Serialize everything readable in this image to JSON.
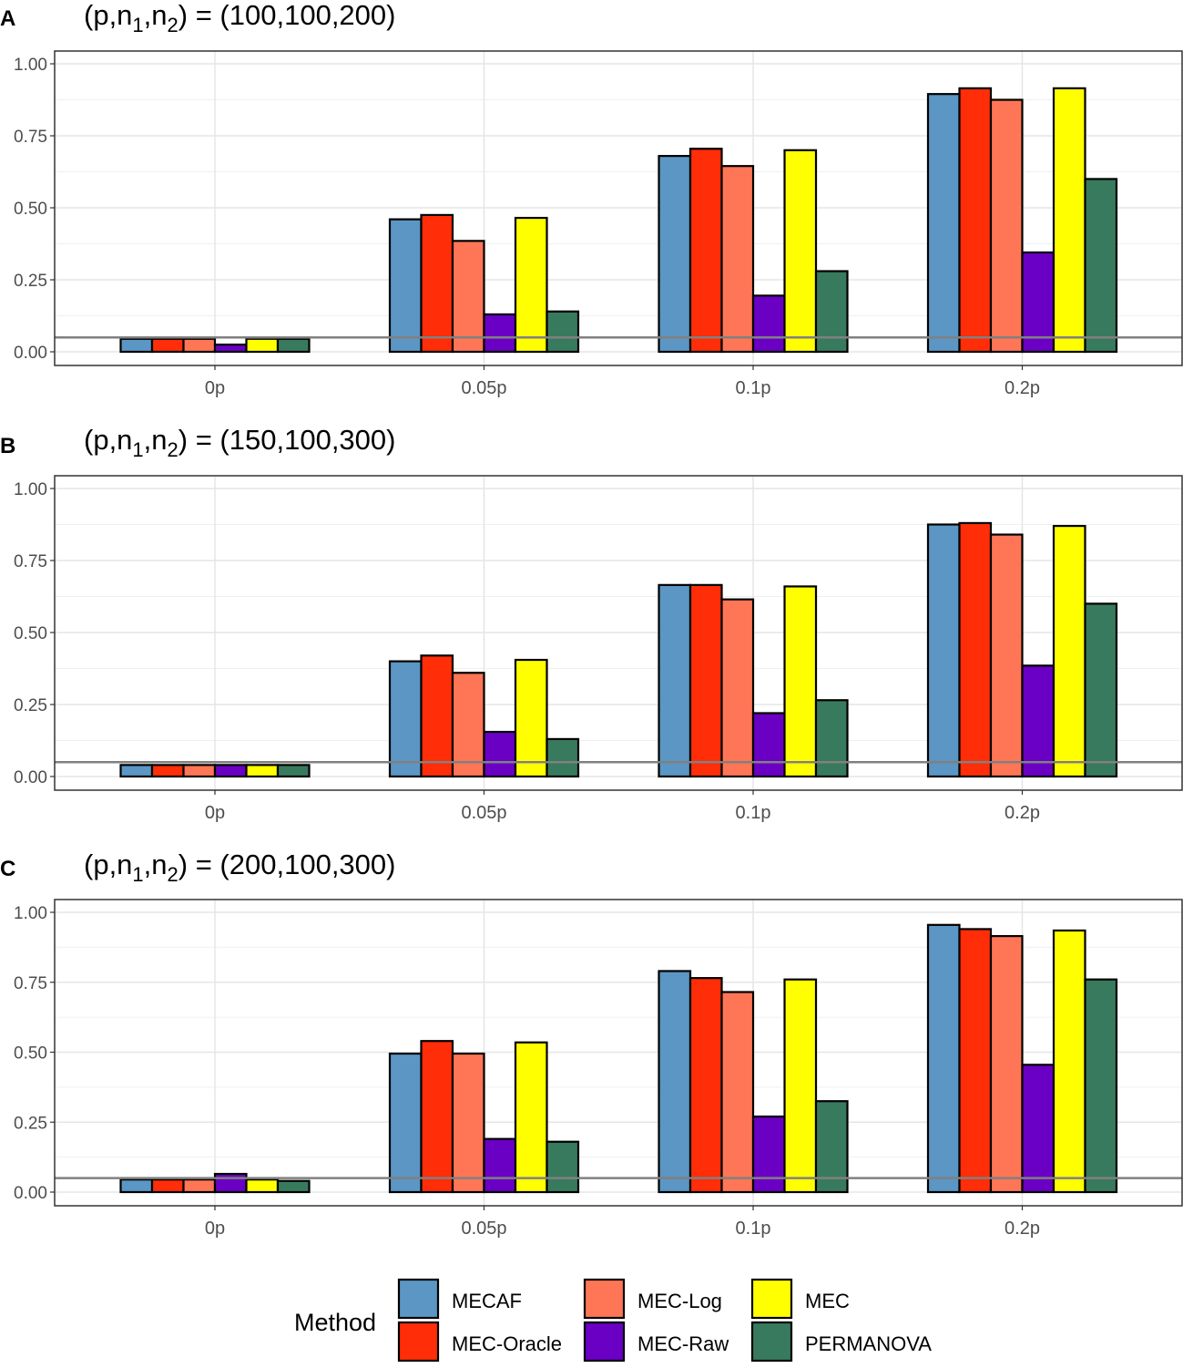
{
  "chart_data": [
    {
      "type": "bar",
      "panel": "A",
      "title": {
        "prefix": "(p,n",
        "s1": "1",
        "mid": ",n",
        "s2": "2",
        "suffix": ") = (100,100,200)"
      },
      "categories": [
        "0p",
        "0.05p",
        "0.1p",
        "0.2p"
      ],
      "ylim": [
        0,
        1.05
      ],
      "yticks": [
        "0.00",
        "0.25",
        "0.50",
        "0.75",
        "1.00"
      ],
      "reference_line": 0.05,
      "series": [
        {
          "name": "MECAF",
          "values": [
            0.045,
            0.46,
            0.68,
            0.895
          ]
        },
        {
          "name": "MEC-Oracle",
          "values": [
            0.045,
            0.475,
            0.705,
            0.915
          ]
        },
        {
          "name": "MEC-Log",
          "values": [
            0.045,
            0.385,
            0.645,
            0.875
          ]
        },
        {
          "name": "MEC-Raw",
          "values": [
            0.025,
            0.13,
            0.195,
            0.345
          ]
        },
        {
          "name": "MEC",
          "values": [
            0.045,
            0.465,
            0.7,
            0.915
          ]
        },
        {
          "name": "PERMANOVA",
          "values": [
            0.045,
            0.14,
            0.28,
            0.6
          ]
        }
      ]
    },
    {
      "type": "bar",
      "panel": "B",
      "title": {
        "prefix": "(p,n",
        "s1": "1",
        "mid": ",n",
        "s2": "2",
        "suffix": ") = (150,100,300)"
      },
      "categories": [
        "0p",
        "0.05p",
        "0.1p",
        "0.2p"
      ],
      "ylim": [
        0,
        1.05
      ],
      "yticks": [
        "0.00",
        "0.25",
        "0.50",
        "0.75",
        "1.00"
      ],
      "reference_line": 0.05,
      "series": [
        {
          "name": "MECAF",
          "values": [
            0.04,
            0.4,
            0.665,
            0.875
          ]
        },
        {
          "name": "MEC-Oracle",
          "values": [
            0.04,
            0.42,
            0.665,
            0.88
          ]
        },
        {
          "name": "MEC-Log",
          "values": [
            0.04,
            0.36,
            0.615,
            0.84
          ]
        },
        {
          "name": "MEC-Raw",
          "values": [
            0.04,
            0.155,
            0.22,
            0.385
          ]
        },
        {
          "name": "MEC",
          "values": [
            0.04,
            0.405,
            0.66,
            0.87
          ]
        },
        {
          "name": "PERMANOVA",
          "values": [
            0.04,
            0.13,
            0.265,
            0.6
          ]
        }
      ]
    },
    {
      "type": "bar",
      "panel": "C",
      "title": {
        "prefix": "(p,n",
        "s1": "1",
        "mid": ",n",
        "s2": "2",
        "suffix": ") = (200,100,300)"
      },
      "categories": [
        "0p",
        "0.05p",
        "0.1p",
        "0.2p"
      ],
      "ylim": [
        0,
        1.05
      ],
      "yticks": [
        "0.00",
        "0.25",
        "0.50",
        "0.75",
        "1.00"
      ],
      "reference_line": 0.05,
      "series": [
        {
          "name": "MECAF",
          "values": [
            0.045,
            0.495,
            0.79,
            0.955
          ]
        },
        {
          "name": "MEC-Oracle",
          "values": [
            0.045,
            0.54,
            0.765,
            0.94
          ]
        },
        {
          "name": "MEC-Log",
          "values": [
            0.045,
            0.495,
            0.715,
            0.915
          ]
        },
        {
          "name": "MEC-Raw",
          "values": [
            0.065,
            0.19,
            0.27,
            0.455
          ]
        },
        {
          "name": "MEC",
          "values": [
            0.045,
            0.535,
            0.76,
            0.935
          ]
        },
        {
          "name": "PERMANOVA",
          "values": [
            0.04,
            0.18,
            0.325,
            0.76
          ]
        }
      ]
    }
  ],
  "legend": {
    "title": "Method",
    "items": [
      {
        "name": "MECAF",
        "color": "#5b96c4"
      },
      {
        "name": "MEC-Oracle",
        "color": "#ff2d08"
      },
      {
        "name": "MEC-Log",
        "color": "#ff7656"
      },
      {
        "name": "MEC-Raw",
        "color": "#6a00c4"
      },
      {
        "name": "MEC",
        "color": "#ffff00"
      },
      {
        "name": "PERMANOVA",
        "color": "#387a5e"
      }
    ]
  }
}
